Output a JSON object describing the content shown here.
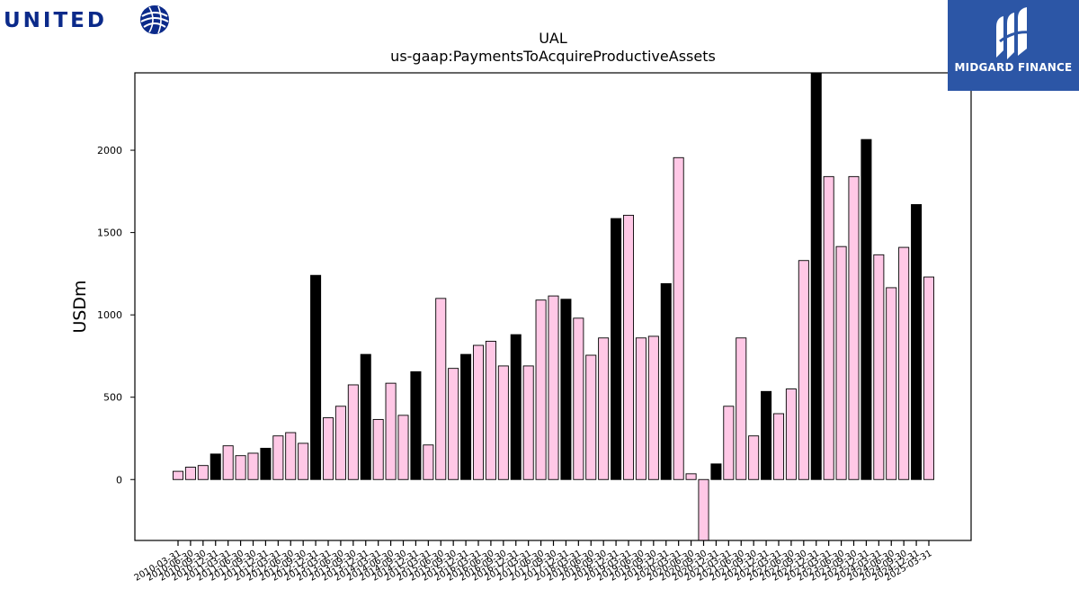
{
  "logos": {
    "left_text": "UNITED",
    "right_text": "MIDGARD FINANCE"
  },
  "chart_data": {
    "type": "bar",
    "title": "UAL",
    "subtitle": "us-gaap:PaymentsToAcquireProductiveAssets",
    "ylabel": "USDm",
    "xlabel": "",
    "ylim": [
      -370,
      2470
    ],
    "yticks": [
      0,
      500,
      1000,
      1500,
      2000
    ],
    "grid": false,
    "colors": {
      "quarter": "#ffc8e6",
      "annual": "#000000",
      "edge": "#000000"
    },
    "categories": [
      "2010-03-31",
      "2010-06-30",
      "2010-09-30",
      "2010-12-31",
      "2011-03-31",
      "2011-06-30",
      "2011-09-30",
      "2011-12-31",
      "2012-03-31",
      "2012-06-30",
      "2012-09-30",
      "2012-12-31",
      "2013-03-31",
      "2013-06-30",
      "2013-09-30",
      "2013-12-31",
      "2014-03-31",
      "2014-06-30",
      "2014-09-30",
      "2014-12-31",
      "2015-03-31",
      "2015-06-30",
      "2015-09-30",
      "2015-12-31",
      "2016-03-31",
      "2016-06-30",
      "2016-09-30",
      "2016-12-31",
      "2017-03-31",
      "2017-06-30",
      "2017-09-30",
      "2017-12-31",
      "2018-03-31",
      "2018-06-30",
      "2018-09-30",
      "2018-12-31",
      "2019-03-31",
      "2019-06-30",
      "2019-09-30",
      "2019-12-31",
      "2020-03-31",
      "2020-06-30",
      "2020-09-30",
      "2020-12-31",
      "2021-03-31",
      "2021-06-30",
      "2021-09-30",
      "2021-12-31",
      "2022-03-31",
      "2022-06-30",
      "2022-09-30",
      "2022-12-31",
      "2023-03-31",
      "2023-06-30",
      "2023-09-30",
      "2023-12-31",
      "2024-03-31",
      "2024-06-30",
      "2024-09-30",
      "2024-12-31",
      "2025-03-31"
    ],
    "values": [
      50,
      75,
      85,
      155,
      205,
      145,
      160,
      190,
      265,
      285,
      220,
      1240,
      375,
      445,
      575,
      760,
      365,
      585,
      390,
      655,
      210,
      1100,
      675,
      760,
      815,
      840,
      690,
      880,
      690,
      1090,
      1115,
      1095,
      980,
      755,
      860,
      1585,
      1605,
      860,
      870,
      1190,
      1955,
      35,
      -370,
      95,
      445,
      860,
      265,
      535,
      400,
      550,
      1330,
      2470,
      1840,
      1415,
      1840,
      2065,
      1365,
      1165,
      1410,
      1670,
      1230
    ],
    "annual": [
      false,
      false,
      false,
      true,
      false,
      false,
      false,
      true,
      false,
      false,
      false,
      true,
      false,
      false,
      false,
      true,
      false,
      false,
      false,
      true,
      false,
      false,
      false,
      true,
      false,
      false,
      false,
      true,
      false,
      false,
      false,
      true,
      false,
      false,
      false,
      true,
      false,
      false,
      false,
      true,
      false,
      false,
      false,
      true,
      false,
      false,
      false,
      true,
      false,
      false,
      false,
      true,
      false,
      false,
      false,
      true,
      false,
      false,
      false,
      true,
      false
    ]
  }
}
